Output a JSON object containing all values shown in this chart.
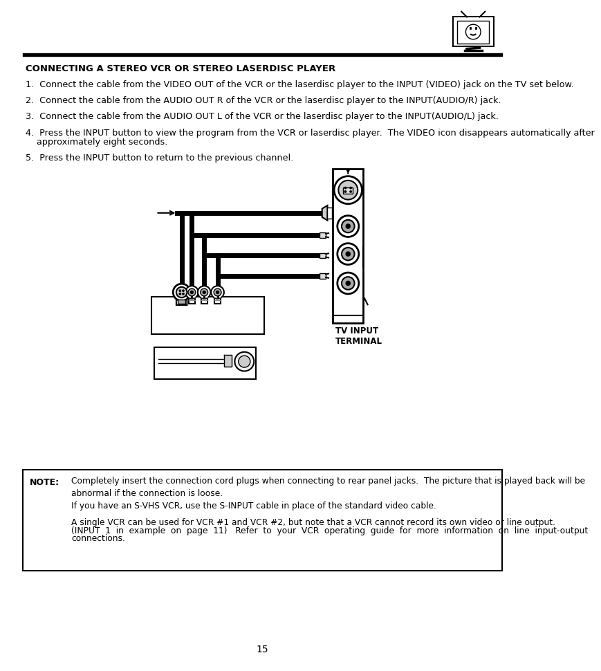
{
  "title_text": "CONNECTING A STEREO VCR OR STEREO LASERDISC PLAYER",
  "step1": "1.  Connect the cable from the VIDEO OUT of the VCR or the laserdisc player to the INPUT (VIDEO) jack on the TV set below.",
  "step2": "2.  Connect the cable from the AUDIO OUT R of the VCR or the laserdisc player to the INPUT(AUDIO/R) jack.",
  "step3": "3.  Connect the cable from the AUDIO OUT L of the VCR or the laserdisc player to the INPUT(AUDIO/L) jack.",
  "step4a": "4.  Press the INPUT button to view the program from the VCR or laserdisc player.  The VIDEO icon disappears automatically after",
  "step4b": "    approximately eight seconds.",
  "step5": "5.  Press the INPUT button to return to the previous channel.",
  "note_label": "NOTE:",
  "note1": "Completely insert the connection cord plugs when connecting to rear panel jacks.  The picture that is played back will be\nabnormal if the connection is loose.",
  "note2": "If you have an S-VHS VCR, use the S-INPUT cable in place of the standard video cable.",
  "note3a": "A single VCR can be used for VCR #1 and VCR #2, but note that a VCR cannot record its own video or line output.",
  "note3b": "(INPUT  1  in  example  on  page  11)   Refer  to  your  VCR  operating  guide  for  more  information  on  line  input-output",
  "note3c": "connections.",
  "tv_input_label": "TV INPUT\nTERMINAL",
  "page_number": "15",
  "bg_color": "#ffffff",
  "text_color": "#000000"
}
